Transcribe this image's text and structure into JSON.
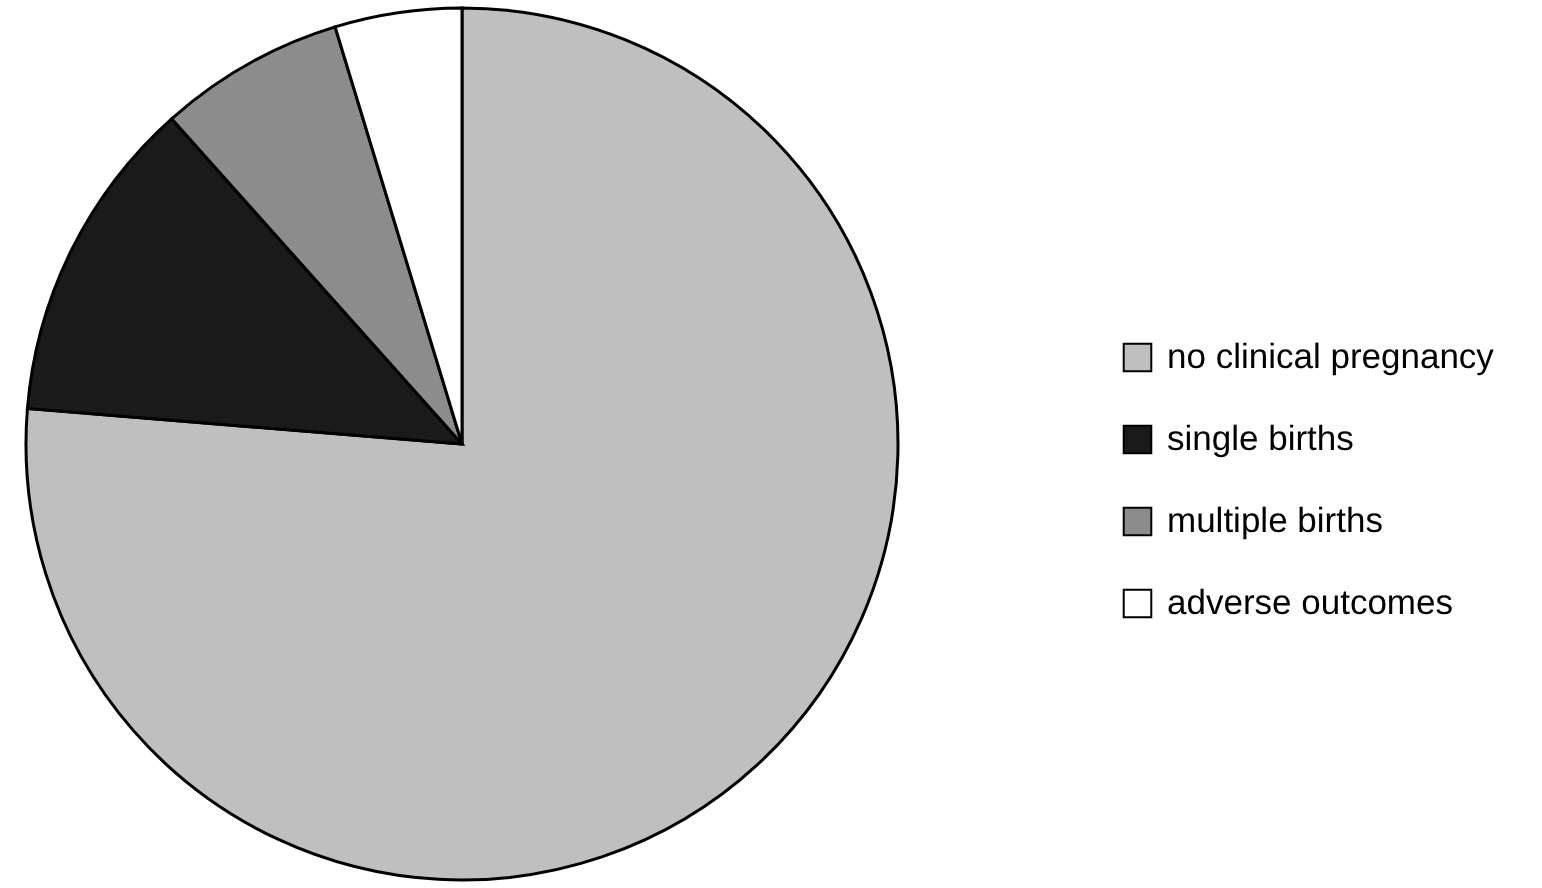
{
  "chart_data": {
    "type": "pie",
    "categories": [
      "no clinical pregnancy",
      "single births",
      "multiple births",
      "adverse outcomes"
    ],
    "values": [
      76.3,
      12.1,
      6.9,
      4.7
    ],
    "colors": [
      "#bfbfbf",
      "#1a1a1a",
      "#8c8c8c",
      "#ffffff"
    ],
    "legend": "right"
  }
}
